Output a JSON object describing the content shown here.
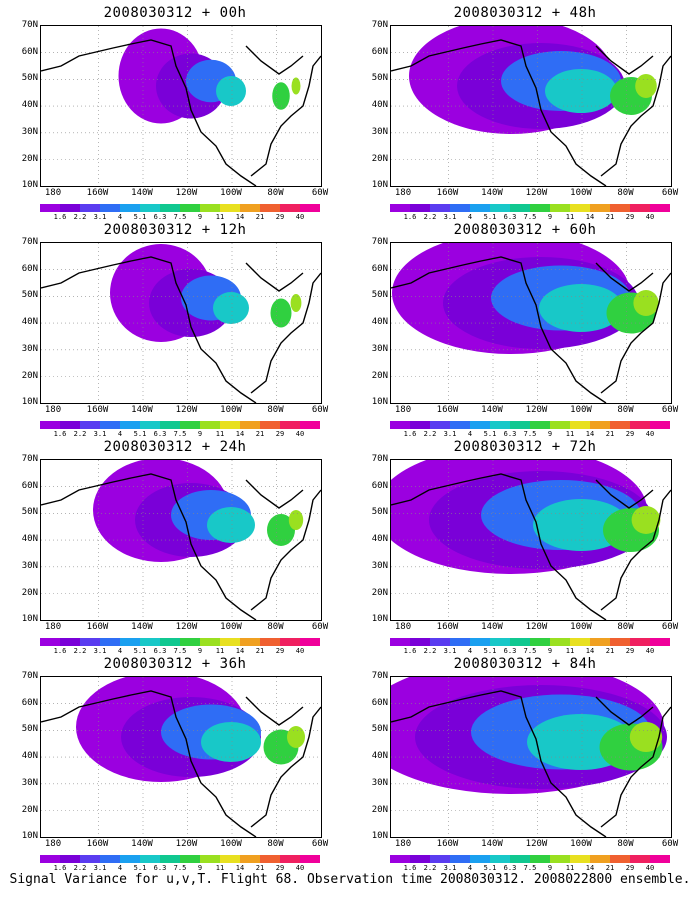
{
  "panels": [
    {
      "title": "2008030312 + 00h",
      "intensity": 0.25
    },
    {
      "title": "2008030312 + 48h",
      "intensity": 0.6
    },
    {
      "title": "2008030312 + 12h",
      "intensity": 0.3
    },
    {
      "title": "2008030312 + 60h",
      "intensity": 0.7
    },
    {
      "title": "2008030312 + 24h",
      "intensity": 0.4
    },
    {
      "title": "2008030312 + 72h",
      "intensity": 0.8
    },
    {
      "title": "2008030312 + 36h",
      "intensity": 0.5
    },
    {
      "title": "2008030312 + 84h",
      "intensity": 0.9
    }
  ],
  "lat_labels": [
    "70N",
    "60N",
    "50N",
    "40N",
    "30N",
    "20N",
    "10N"
  ],
  "lon_labels": [
    "180",
    "160W",
    "140W",
    "120W",
    "100W",
    "80W",
    "60W"
  ],
  "colorbar": {
    "labels": [
      "1.6",
      "2.2",
      "3.1",
      "4",
      "5.1",
      "6.3",
      "7.5",
      "9",
      "11",
      "14",
      "21",
      "29",
      "40"
    ],
    "colors": [
      "#9b00e0",
      "#7a00d8",
      "#5a3cf0",
      "#2f6df5",
      "#1aa0f0",
      "#18c8c8",
      "#10c890",
      "#30d040",
      "#9ae020",
      "#e8e020",
      "#f0a020",
      "#f06030",
      "#f02060",
      "#f0009a"
    ]
  },
  "caption": "Signal Variance for u,v,T. Flight 68. Observation time 2008030312. 2008022800 ensemble."
}
